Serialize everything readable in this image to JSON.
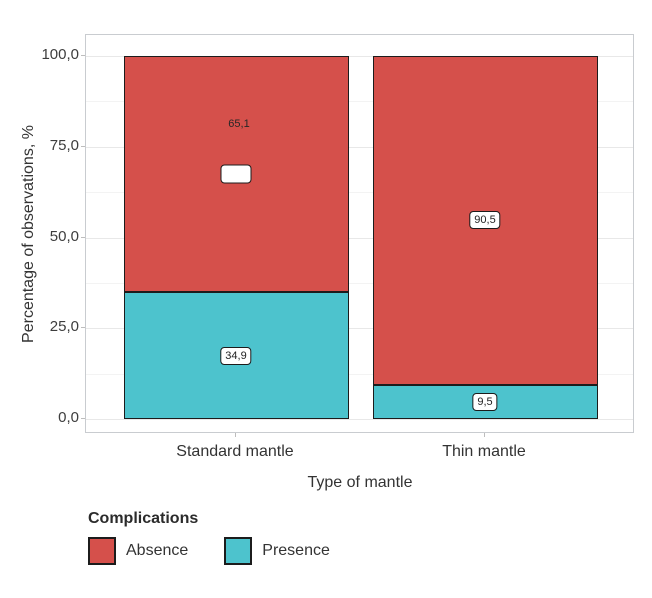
{
  "chart_data": {
    "type": "bar",
    "subtype": "stacked_percent",
    "title": "",
    "xlabel": "Type of mantle",
    "ylabel": "Percentage of observations, %",
    "ylim": [
      0,
      100
    ],
    "grid": "major+minor",
    "categories": [
      "Standard mantle",
      "Thin mantle"
    ],
    "series": [
      {
        "name": "Absence",
        "color": "#d5504b",
        "values": [
          65.1,
          90.5
        ],
        "value_labels": [
          "65,1",
          "90,5"
        ]
      },
      {
        "name": "Presence",
        "color": "#4dc3cd",
        "values": [
          34.9,
          9.5
        ],
        "value_labels": [
          "34,9",
          "9,5"
        ]
      }
    ],
    "stack_order_bottom_to_top": [
      "Presence",
      "Absence"
    ],
    "yticks": [
      {
        "value": 0,
        "label": "0,0"
      },
      {
        "value": 25,
        "label": "25,0"
      },
      {
        "value": 50,
        "label": "50,0"
      },
      {
        "value": 75,
        "label": "75,0"
      },
      {
        "value": 100,
        "label": "100,0"
      }
    ],
    "yticks_minor": [
      12.5,
      37.5,
      62.5,
      87.5
    ],
    "legend": {
      "title": "Complications",
      "position": "bottom-left",
      "items": [
        {
          "label": "Absence",
          "color": "#d5504b"
        },
        {
          "label": "Presence",
          "color": "#4dc3cd"
        }
      ]
    },
    "label_anomaly": {
      "category_index": 0,
      "series": "Absence",
      "detached_text": "65,1",
      "text_offset": {
        "x": 3,
        "y": -50
      }
    }
  },
  "colors": {
    "bar_border": "#1c1c1c",
    "panel_border": "#c9ccd0",
    "grid_major": "#e8e8e8",
    "grid_minor": "#f3f3f3",
    "tick": "#bdbdbd",
    "axis_text": "#3d3d3d",
    "background": "#ffffff"
  }
}
